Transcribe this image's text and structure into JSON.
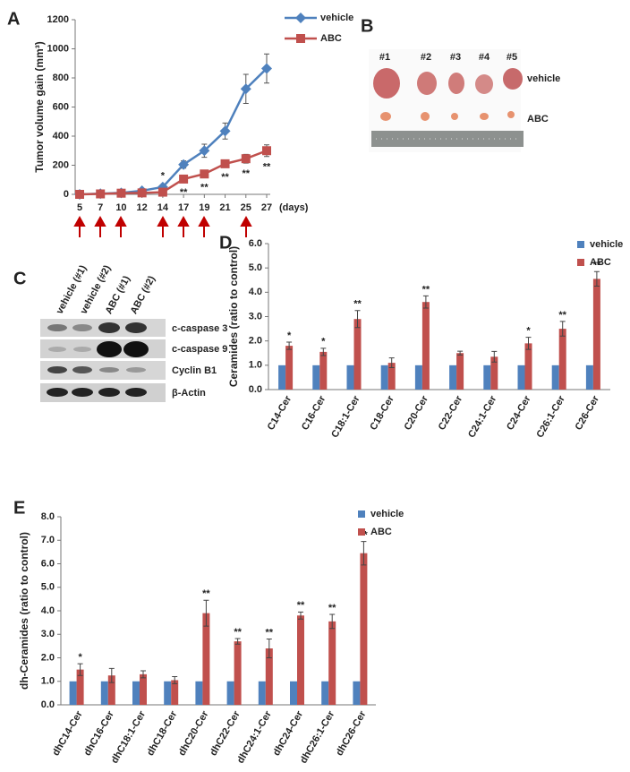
{
  "chart_data": [
    {
      "type": "line",
      "panel": "A",
      "ylabel": "Tumor volume gain (mm³)",
      "xlabel": "(days)",
      "categories": [
        "5",
        "7",
        "10",
        "12",
        "14",
        "17",
        "19",
        "21",
        "25",
        "27"
      ],
      "ylim": [
        0,
        1200
      ],
      "yticks": [
        0,
        200,
        400,
        600,
        800,
        1000,
        1200
      ],
      "grid": false,
      "legend": "upper right",
      "series": [
        {
          "name": "vehicle",
          "color": "#4f81bd",
          "marker": "diamond",
          "values": [
            0,
            5,
            10,
            25,
            50,
            205,
            300,
            435,
            725,
            865
          ],
          "errors": [
            0,
            5,
            8,
            10,
            15,
            25,
            45,
            55,
            100,
            100
          ],
          "significance": [
            null,
            null,
            null,
            null,
            "*",
            null,
            null,
            null,
            null,
            null
          ]
        },
        {
          "name": "ABC",
          "color": "#c0504d",
          "marker": "square",
          "values": [
            0,
            3,
            8,
            10,
            15,
            105,
            140,
            210,
            245,
            300
          ],
          "errors": [
            0,
            3,
            5,
            5,
            8,
            20,
            20,
            20,
            30,
            40
          ],
          "significance": [
            null,
            null,
            null,
            null,
            null,
            "**",
            "**",
            "**",
            "**",
            "**"
          ]
        }
      ]
    },
    {
      "type": "bar",
      "panel": "D",
      "ylabel": "Ceramides (ratio to control)",
      "categories": [
        "C14-Cer",
        "C16-Cer",
        "C18:1-Cer",
        "C18-Cer",
        "C20-Cer",
        "C22-Cer",
        "C24:1-Cer",
        "C24-Cer",
        "C26:1-Cer",
        "C26-Cer"
      ],
      "ylim": [
        0,
        6
      ],
      "yticks": [
        {
          "value": 0,
          "label": "0.0"
        },
        {
          "value": 1,
          "label": "1.0"
        },
        {
          "value": 2,
          "label": "2.0"
        },
        {
          "value": 3,
          "label": "3.0"
        },
        {
          "value": 4,
          "label": "4.0"
        },
        {
          "value": 5,
          "label": "5.0"
        },
        {
          "value": 6,
          "label": "6.0"
        }
      ],
      "grid": false,
      "legend": "upper right",
      "series": [
        {
          "name": "vehicle",
          "color": "#4f81bd",
          "values": [
            1,
            1,
            1,
            1,
            1,
            1,
            1,
            1,
            1,
            1
          ]
        },
        {
          "name": "ABC",
          "color": "#c0504d",
          "values": [
            1.8,
            1.55,
            2.9,
            1.1,
            3.6,
            1.5,
            1.35,
            1.9,
            2.5,
            4.55
          ],
          "errors": [
            0.15,
            0.15,
            0.35,
            0.2,
            0.25,
            0.08,
            0.22,
            0.25,
            0.3,
            0.3
          ],
          "significance": [
            "*",
            "*",
            "**",
            null,
            "**",
            null,
            null,
            "*",
            "**",
            "**"
          ]
        }
      ]
    },
    {
      "type": "bar",
      "panel": "E",
      "ylabel": "dh-Ceramides (ratio to control)",
      "categories": [
        "dhC14-Cer",
        "dhC16-Cer",
        "dhC18:1-Cer",
        "dhC18-Cer",
        "dhC20-Cer",
        "dhC22-Cer",
        "dhC24:1-Cer",
        "dhC24-Cer",
        "dhC26:1-Cer",
        "dhC26-Cer"
      ],
      "ylim": [
        0,
        8
      ],
      "yticks": [
        {
          "value": 0,
          "label": "0.0"
        },
        {
          "value": 1,
          "label": "1.0"
        },
        {
          "value": 2,
          "label": "2.0"
        },
        {
          "value": 3,
          "label": "3.0"
        },
        {
          "value": 4,
          "label": "4.0"
        },
        {
          "value": 5,
          "label": "5.0"
        },
        {
          "value": 6,
          "label": "6.0"
        },
        {
          "value": 7,
          "label": "7.0"
        },
        {
          "value": 8,
          "label": "8.0"
        }
      ],
      "grid": false,
      "legend": "upper right",
      "series": [
        {
          "name": "vehicle",
          "color": "#4f81bd",
          "values": [
            1,
            1,
            1,
            1,
            1,
            1,
            1,
            1,
            1,
            1
          ]
        },
        {
          "name": "ABC",
          "color": "#c0504d",
          "values": [
            1.5,
            1.25,
            1.3,
            1.05,
            3.9,
            2.7,
            2.4,
            3.8,
            3.55,
            6.45
          ],
          "errors": [
            0.25,
            0.3,
            0.15,
            0.15,
            0.55,
            0.12,
            0.4,
            0.15,
            0.3,
            0.5
          ],
          "significance": [
            "*",
            null,
            null,
            null,
            "**",
            "**",
            "**",
            "**",
            "**",
            "**"
          ]
        }
      ]
    }
  ],
  "photo": {
    "panel": "B",
    "tumors": [
      "#1",
      "#2",
      "#3",
      "#4",
      "#5"
    ],
    "rows": [
      "vehicle",
      "ABC"
    ]
  },
  "blot": {
    "panel": "C",
    "lanes": [
      "vehicle (#1)",
      "vehicle (#2)",
      "ABC (#1)",
      "ABC (#2)"
    ],
    "bands": [
      "c-caspase 3",
      "c-caspase 9",
      "Cyclin B1",
      "β-Actin"
    ]
  }
}
